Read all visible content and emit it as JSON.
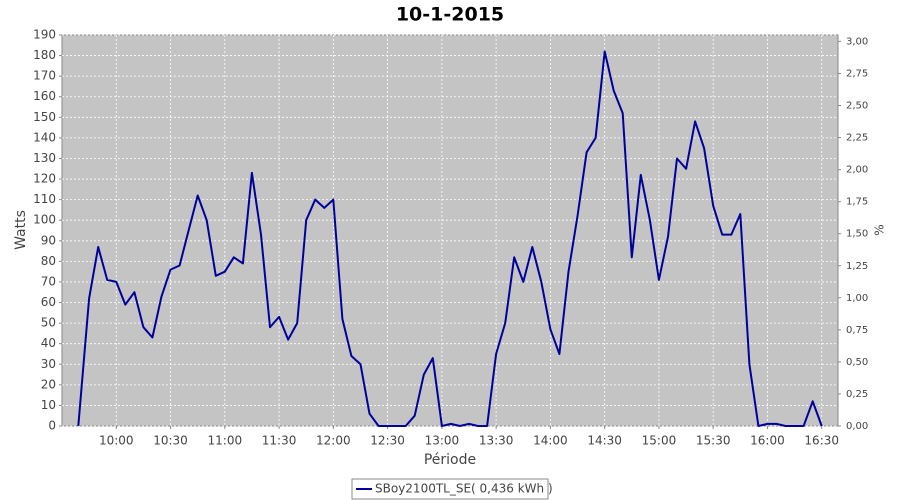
{
  "chart_data": {
    "type": "line",
    "title": "10-1-2015",
    "x_label": "Période",
    "y_label": "Watts",
    "y2_label": "%",
    "x": [
      "09:39",
      "09:45",
      "09:50",
      "09:55",
      "10:00",
      "10:05",
      "10:10",
      "10:15",
      "10:20",
      "10:25",
      "10:30",
      "10:35",
      "10:40",
      "10:45",
      "10:50",
      "10:55",
      "11:00",
      "11:05",
      "11:10",
      "11:15",
      "11:20",
      "11:25",
      "11:30",
      "11:35",
      "11:40",
      "11:45",
      "11:50",
      "11:55",
      "12:00",
      "12:05",
      "12:10",
      "12:15",
      "12:20",
      "12:25",
      "12:30",
      "12:35",
      "12:40",
      "12:45",
      "12:50",
      "12:55",
      "13:00",
      "13:05",
      "13:10",
      "13:15",
      "13:20",
      "13:25",
      "13:30",
      "13:35",
      "13:40",
      "13:45",
      "13:50",
      "13:55",
      "14:00",
      "14:05",
      "14:10",
      "14:15",
      "14:20",
      "14:25",
      "14:30",
      "14:35",
      "14:40",
      "14:45",
      "14:50",
      "14:55",
      "15:00",
      "15:05",
      "15:10",
      "15:15",
      "15:20",
      "15:25",
      "15:30",
      "15:35",
      "15:40",
      "15:45",
      "15:50",
      "15:55",
      "16:00",
      "16:05",
      "16:10",
      "16:15",
      "16:20",
      "16:25",
      "16:30"
    ],
    "series": [
      {
        "name": "SBoy2100TL_SE( 0,436 kWh )",
        "color": "#00009c",
        "values": [
          0,
          62,
          87,
          71,
          70,
          59,
          65,
          48,
          43,
          63,
          76,
          78,
          95,
          112,
          100,
          73,
          75,
          82,
          79,
          123,
          93,
          48,
          53,
          42,
          50,
          100,
          110,
          106,
          110,
          52,
          34,
          30,
          6,
          0,
          0,
          0,
          0,
          5,
          25,
          33,
          0,
          1,
          0,
          1,
          0,
          0,
          35,
          50,
          82,
          70,
          87,
          70,
          47,
          35,
          75,
          102,
          133,
          140,
          182,
          163,
          152,
          82,
          122,
          100,
          71,
          92,
          130,
          125,
          148,
          135,
          107,
          93,
          93,
          103,
          30,
          0,
          1,
          1,
          0,
          0,
          0,
          12,
          0
        ]
      }
    ],
    "xlim": [
      "09:30",
      "16:39"
    ],
    "xticks": [
      "10:00",
      "10:30",
      "11:00",
      "11:30",
      "12:00",
      "12:30",
      "13:00",
      "13:30",
      "14:00",
      "14:30",
      "15:00",
      "15:30",
      "16:00",
      "16:30"
    ],
    "ylim": [
      0,
      190
    ],
    "yticks": [
      0,
      10,
      20,
      30,
      40,
      50,
      60,
      70,
      80,
      90,
      100,
      110,
      120,
      130,
      140,
      150,
      160,
      170,
      180,
      190
    ],
    "y2lim": [
      0,
      3.05
    ],
    "y2ticks": [
      {
        "value": 0,
        "label": "0,00"
      },
      {
        "value": 0.25,
        "label": "0,25"
      },
      {
        "value": 0.5,
        "label": "0,50"
      },
      {
        "value": 0.75,
        "label": "0,75"
      },
      {
        "value": 1,
        "label": "1,00"
      },
      {
        "value": 1.25,
        "label": "1,25"
      },
      {
        "value": 1.5,
        "label": "1,50"
      },
      {
        "value": 1.75,
        "label": "1,75"
      },
      {
        "value": 2,
        "label": "2,00"
      },
      {
        "value": 2.25,
        "label": "2,25"
      },
      {
        "value": 2.5,
        "label": "2,50"
      },
      {
        "value": 2.75,
        "label": "2,75"
      },
      {
        "value": 3,
        "label": "3,00"
      }
    ],
    "grid": true
  }
}
